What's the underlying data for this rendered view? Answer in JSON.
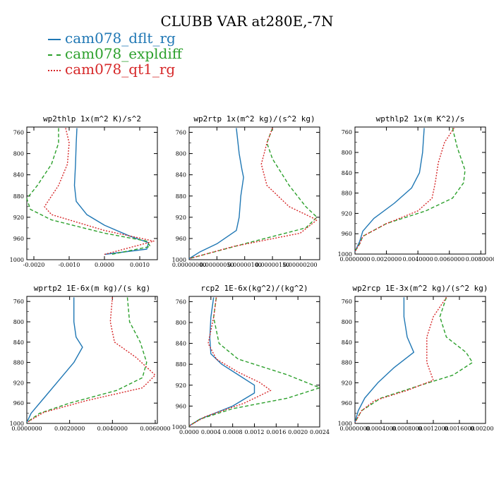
{
  "figure_title": "CLUBB VAR at280E,-7N",
  "legend": [
    {
      "label": "cam078_dflt_rg",
      "color": "#1f77b4",
      "dash": "solid"
    },
    {
      "label": "cam078_expldiff",
      "color": "#2ca02c",
      "dash": "longdash"
    },
    {
      "label": "cam078_qt1_rg",
      "color": "#d62728",
      "dash": "shortdash"
    }
  ],
  "chart_data": [
    {
      "type": "line",
      "title": "wp2thlp  1x(m^2 K)/s^2",
      "xlim": [
        -0.0022,
        0.0015
      ],
      "ylim": [
        1000,
        750
      ],
      "xticks": [
        -0.002,
        -0.001,
        0.0,
        0.001
      ],
      "xtick_labels": [
        "-0.0020",
        "-0.0010",
        "0.0000",
        "0.0010"
      ],
      "yticks": [
        760,
        800,
        840,
        880,
        920,
        960,
        1000
      ],
      "series": [
        {
          "name": "cam078_dflt_rg",
          "points": [
            [
              -0.00078,
              752
            ],
            [
              -0.0008,
              780
            ],
            [
              -0.00082,
              820
            ],
            [
              -0.00085,
              860
            ],
            [
              -0.0008,
              890
            ],
            [
              -0.0005,
              915
            ],
            [
              0.0,
              935
            ],
            [
              0.0007,
              955
            ],
            [
              0.00125,
              968
            ],
            [
              0.0012,
              980
            ],
            [
              0.0,
              990
            ]
          ]
        },
        {
          "name": "cam078_expldiff",
          "points": [
            [
              -0.0013,
              752
            ],
            [
              -0.0013,
              780
            ],
            [
              -0.0015,
              820
            ],
            [
              -0.0019,
              860
            ],
            [
              -0.0022,
              885
            ],
            [
              -0.0021,
              905
            ],
            [
              -0.0015,
              925
            ],
            [
              0.0,
              950
            ],
            [
              0.0012,
              965
            ],
            [
              0.0013,
              975
            ],
            [
              0.0002,
              990
            ]
          ]
        },
        {
          "name": "cam078_qt1_rg",
          "points": [
            [
              -0.0011,
              752
            ],
            [
              -0.001,
              780
            ],
            [
              -0.00105,
              820
            ],
            [
              -0.0013,
              860
            ],
            [
              -0.0017,
              900
            ],
            [
              -0.0015,
              915
            ],
            [
              0.0,
              945
            ],
            [
              0.0014,
              965
            ],
            [
              0.0,
              990
            ]
          ]
        }
      ]
    },
    {
      "type": "line",
      "title": "wp2rtp  1x(m^2 kg)/(s^2 kg)",
      "xlim": [
        0.0,
        2.35e-06
      ],
      "ylim": [
        1000,
        750
      ],
      "xticks": [
        0.0,
        5e-07,
        1e-06,
        1.5e-06,
        2e-06
      ],
      "xtick_labels": [
        "0.00000000",
        "0.00000050",
        "0.00000100",
        "0.00000150",
        "0.00000200"
      ],
      "yticks": [
        760,
        800,
        840,
        880,
        920,
        960,
        1000
      ],
      "series": [
        {
          "name": "cam078_dflt_rg",
          "points": [
            [
              8.5e-07,
              752
            ],
            [
              9e-07,
              800
            ],
            [
              9.5e-07,
              830
            ],
            [
              9.8e-07,
              845
            ],
            [
              9.3e-07,
              880
            ],
            [
              9e-07,
              920
            ],
            [
              8.5e-07,
              945
            ],
            [
              5e-07,
              970
            ],
            [
              2e-07,
              985
            ],
            [
              0.0,
              998
            ]
          ]
        },
        {
          "name": "cam078_expldiff",
          "points": [
            [
              1.5e-06,
              752
            ],
            [
              1.4e-06,
              780
            ],
            [
              1.5e-06,
              810
            ],
            [
              1.8e-06,
              860
            ],
            [
              2.1e-06,
              900
            ],
            [
              2.3e-06,
              920
            ],
            [
              2.1e-06,
              940
            ],
            [
              1e-06,
              970
            ],
            [
              0.0,
              998
            ]
          ]
        },
        {
          "name": "cam078_qt1_rg",
          "points": [
            [
              1.5e-06,
              752
            ],
            [
              1.4e-06,
              780
            ],
            [
              1.3e-06,
              820
            ],
            [
              1.4e-06,
              860
            ],
            [
              1.8e-06,
              900
            ],
            [
              2.3e-06,
              925
            ],
            [
              2e-06,
              950
            ],
            [
              8e-07,
              975
            ],
            [
              0.0,
              998
            ]
          ]
        }
      ]
    },
    {
      "type": "line",
      "title": "wpthlp2  1x(m K^2)/s",
      "xlim": [
        0.0,
        0.0083
      ],
      "ylim": [
        1000,
        750
      ],
      "xticks": [
        0.0,
        0.002,
        0.004,
        0.006,
        0.008
      ],
      "xtick_labels": [
        "0.0000000",
        "0.0020000",
        "0.0040000",
        "0.0060000",
        "0.0080000"
      ],
      "yticks": [
        760,
        800,
        840,
        880,
        920,
        960,
        1000
      ],
      "series": [
        {
          "name": "cam078_dflt_rg",
          "points": [
            [
              0.0044,
              752
            ],
            [
              0.0043,
              800
            ],
            [
              0.0041,
              840
            ],
            [
              0.0036,
              870
            ],
            [
              0.0025,
              900
            ],
            [
              0.0012,
              930
            ],
            [
              0.0005,
              955
            ],
            [
              0.0003,
              975
            ],
            [
              0.0,
              995
            ]
          ]
        },
        {
          "name": "cam078_expldiff",
          "points": [
            [
              0.0062,
              752
            ],
            [
              0.0065,
              790
            ],
            [
              0.007,
              835
            ],
            [
              0.0069,
              860
            ],
            [
              0.0062,
              890
            ],
            [
              0.0045,
              915
            ],
            [
              0.002,
              940
            ],
            [
              0.0005,
              965
            ],
            [
              0.0003,
              980
            ],
            [
              0.0,
              995
            ]
          ]
        },
        {
          "name": "cam078_qt1_rg",
          "points": [
            [
              0.0063,
              752
            ],
            [
              0.0057,
              780
            ],
            [
              0.0053,
              820
            ],
            [
              0.0051,
              860
            ],
            [
              0.0049,
              890
            ],
            [
              0.004,
              915
            ],
            [
              0.002,
              940
            ],
            [
              0.0005,
              965
            ],
            [
              0.0003,
              980
            ],
            [
              0.0,
              995
            ]
          ]
        }
      ]
    },
    {
      "type": "line",
      "title": "wprtp2  1E-6x(m kg)/(s kg)",
      "xlim": [
        0.0,
        0.0061
      ],
      "ylim": [
        1000,
        750
      ],
      "xticks": [
        0.0,
        0.002,
        0.004,
        0.006
      ],
      "xtick_labels": [
        "0.0000000",
        "0.0020000",
        "0.0040000",
        "0.0060000"
      ],
      "yticks": [
        760,
        800,
        840,
        880,
        920,
        960,
        1000
      ],
      "series": [
        {
          "name": "cam078_dflt_rg",
          "points": [
            [
              0.0022,
              752
            ],
            [
              0.0022,
              800
            ],
            [
              0.0023,
              830
            ],
            [
              0.0026,
              850
            ],
            [
              0.0022,
              880
            ],
            [
              0.0015,
              915
            ],
            [
              0.0008,
              950
            ],
            [
              0.0002,
              980
            ],
            [
              0.0,
              998
            ]
          ]
        },
        {
          "name": "cam078_expldiff",
          "points": [
            [
              0.0047,
              752
            ],
            [
              0.0048,
              800
            ],
            [
              0.0053,
              840
            ],
            [
              0.0056,
              880
            ],
            [
              0.0054,
              910
            ],
            [
              0.0042,
              935
            ],
            [
              0.002,
              960
            ],
            [
              0.0006,
              980
            ],
            [
              0.0,
              998
            ]
          ]
        },
        {
          "name": "cam078_qt1_rg",
          "points": [
            [
              0.004,
              752
            ],
            [
              0.0039,
              800
            ],
            [
              0.0041,
              840
            ],
            [
              0.0051,
              870
            ],
            [
              0.006,
              905
            ],
            [
              0.0054,
              930
            ],
            [
              0.0028,
              955
            ],
            [
              0.0008,
              978
            ],
            [
              0.0,
              998
            ]
          ]
        }
      ]
    },
    {
      "type": "line",
      "title": "rcp2  1E-6x(kg^2)/(kg^2)",
      "xlim": [
        0.0,
        0.0024
      ],
      "ylim": [
        1000,
        750
      ],
      "xticks": [
        0.0,
        0.0004,
        0.0008,
        0.0012,
        0.0016,
        0.002,
        0.0024
      ],
      "xtick_labels": [
        "0.0000",
        "0.0004",
        "0.0008",
        "0.0012",
        "0.0016",
        "0.0020",
        "0.0024"
      ],
      "yticks": [
        760,
        800,
        840,
        880,
        920,
        960,
        1000
      ],
      "series": [
        {
          "name": "cam078_dflt_rg",
          "points": [
            [
              0.00045,
              752
            ],
            [
              0.0004,
              790
            ],
            [
              0.00038,
              830
            ],
            [
              0.0004,
              860
            ],
            [
              0.0006,
              880
            ],
            [
              0.0009,
              900
            ],
            [
              0.0012,
              920
            ],
            [
              0.0012,
              935
            ],
            [
              0.0008,
              960
            ],
            [
              0.0002,
              985
            ],
            [
              0.0,
              998
            ]
          ]
        },
        {
          "name": "cam078_expldiff",
          "points": [
            [
              0.0005,
              752
            ],
            [
              0.00045,
              790
            ],
            [
              0.00055,
              840
            ],
            [
              0.0009,
              870
            ],
            [
              0.0018,
              900
            ],
            [
              0.0024,
              925
            ],
            [
              0.0018,
              945
            ],
            [
              0.0008,
              965
            ],
            [
              0.0002,
              985
            ],
            [
              0.0,
              998
            ]
          ]
        },
        {
          "name": "cam078_qt1_rg",
          "points": [
            [
              0.0005,
              752
            ],
            [
              0.00045,
              790
            ],
            [
              0.00035,
              840
            ],
            [
              0.0005,
              870
            ],
            [
              0.0009,
              895
            ],
            [
              0.0013,
              915
            ],
            [
              0.0015,
              930
            ],
            [
              0.001,
              955
            ],
            [
              0.0003,
              980
            ],
            [
              0.0,
              998
            ]
          ]
        }
      ]
    },
    {
      "type": "line",
      "title": "wp2rcp  1E-3x(m^2 kg)/(s^2 kg)",
      "xlim": [
        0.0,
        0.002
      ],
      "ylim": [
        1000,
        750
      ],
      "xticks": [
        0.0,
        0.0004,
        0.0008,
        0.0012,
        0.0016,
        0.002
      ],
      "xtick_labels": [
        "0.0000000",
        "0.0004000",
        "0.0008000",
        "0.0012000",
        "0.0016000",
        "0.0020000"
      ],
      "yticks": [
        760,
        800,
        840,
        880,
        920,
        960,
        1000
      ],
      "series": [
        {
          "name": "cam078_dflt_rg",
          "points": [
            [
              0.00075,
              752
            ],
            [
              0.00075,
              790
            ],
            [
              0.0008,
              830
            ],
            [
              0.0009,
              860
            ],
            [
              0.0006,
              890
            ],
            [
              0.00035,
              920
            ],
            [
              0.00015,
              950
            ],
            [
              5e-05,
              975
            ],
            [
              0.0,
              998
            ]
          ]
        },
        {
          "name": "cam078_expldiff",
          "points": [
            [
              0.0014,
              752
            ],
            [
              0.0013,
              790
            ],
            [
              0.0014,
              830
            ],
            [
              0.0017,
              860
            ],
            [
              0.0018,
              880
            ],
            [
              0.0015,
              905
            ],
            [
              0.001,
              925
            ],
            [
              0.0004,
              950
            ],
            [
              0.0001,
              975
            ],
            [
              0.0,
              998
            ]
          ]
        },
        {
          "name": "cam078_qt1_rg",
          "points": [
            [
              0.0014,
              752
            ],
            [
              0.0012,
              790
            ],
            [
              0.0011,
              830
            ],
            [
              0.0011,
              880
            ],
            [
              0.0012,
              915
            ],
            [
              0.0008,
              935
            ],
            [
              0.0003,
              955
            ],
            [
              0.0001,
              975
            ],
            [
              0.0,
              998
            ]
          ]
        }
      ]
    }
  ]
}
